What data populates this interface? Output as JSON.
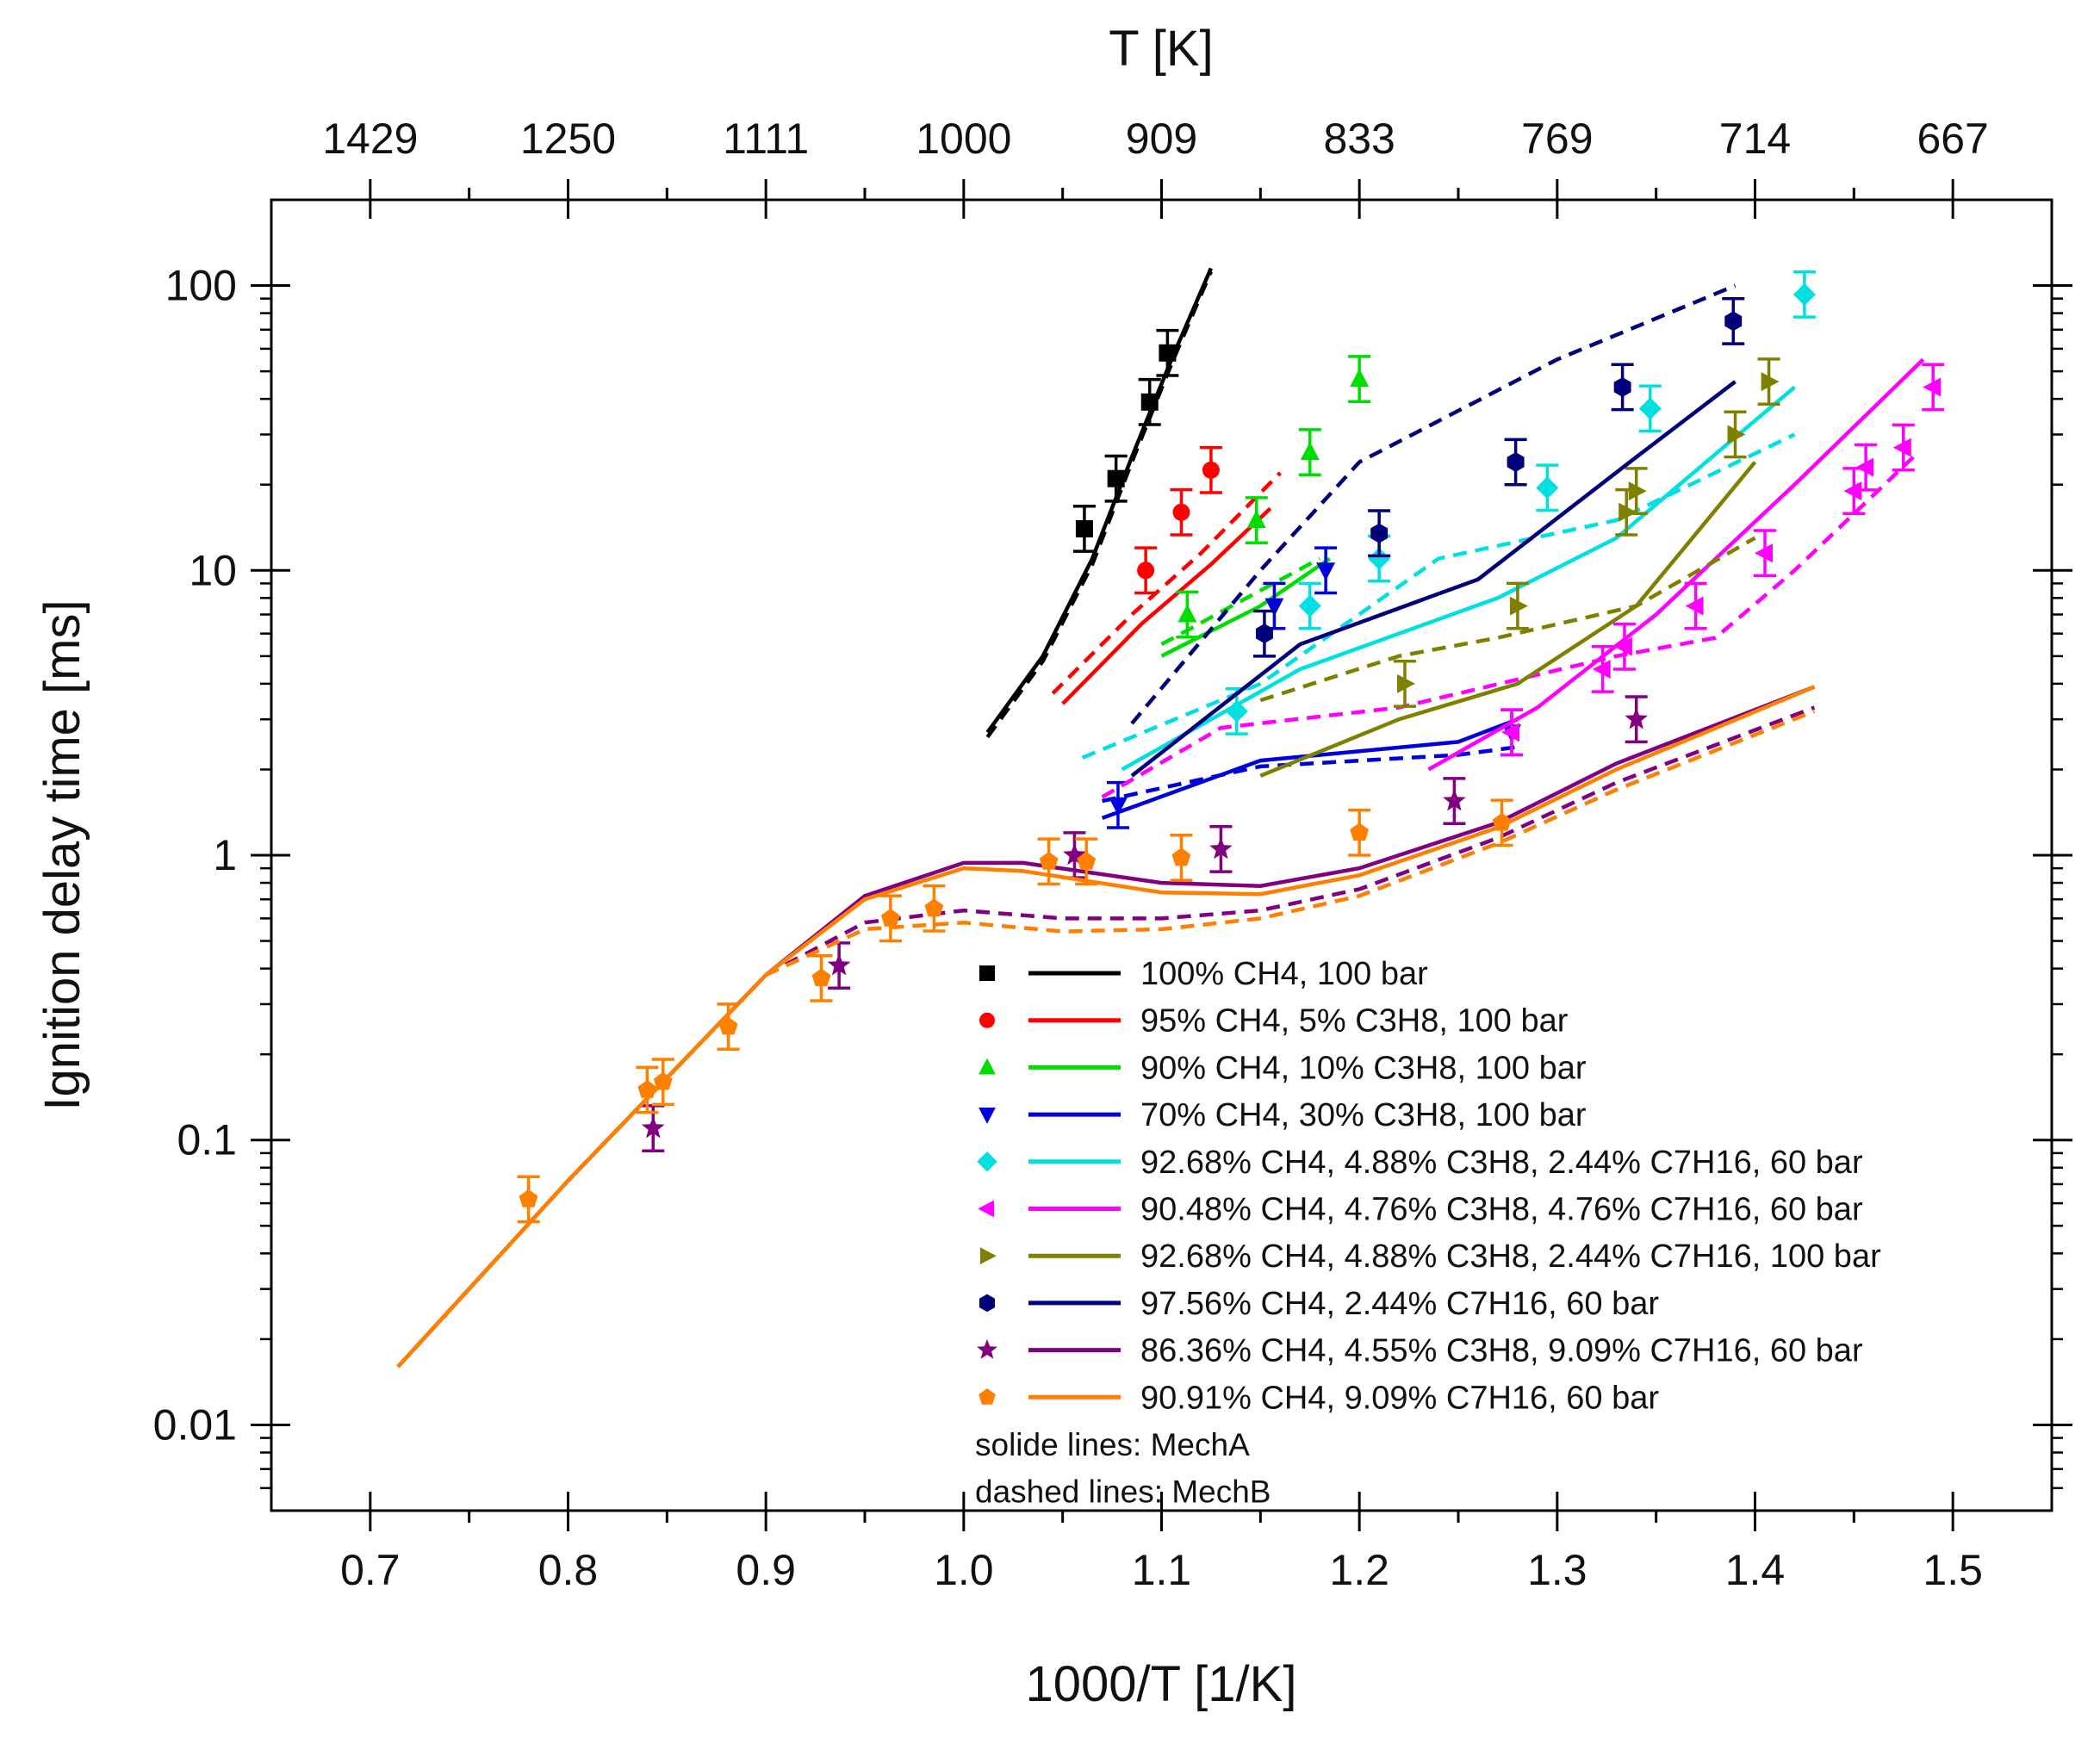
{
  "chart_data": {
    "type": "scatter",
    "ylabel": "Ignition delay time [ms]",
    "xlabel": "1000/T [1/K]",
    "top_axis_label": "T [K]",
    "xlim": [
      0.65,
      1.55
    ],
    "ylim": [
      0.005,
      200
    ],
    "yscale": "log",
    "x_ticks": [
      0.7,
      0.8,
      0.9,
      1.0,
      1.1,
      1.2,
      1.3,
      1.4,
      1.5
    ],
    "x_tick_labels": [
      "0.7",
      "0.8",
      "0.9",
      "1.0",
      "1.1",
      "1.2",
      "1.3",
      "1.4",
      "1.5"
    ],
    "y_ticks": [
      0.01,
      0.1,
      1,
      10,
      100
    ],
    "y_tick_labels": [
      "0.01",
      "0.1",
      "1",
      "10",
      "100"
    ],
    "top_ticks": [
      0.7,
      0.8,
      0.9,
      1.0,
      1.1,
      1.2,
      1.3,
      1.4,
      1.5
    ],
    "top_tick_labels": [
      "1429",
      "1250",
      "1111",
      "1000",
      "909",
      "833",
      "769",
      "714",
      "667"
    ],
    "legend_notes": [
      "solide lines: MechA",
      "dashed lines: MechB"
    ],
    "series": [
      {
        "name": "100% CH4, 100 bar",
        "color": "#000000",
        "marker": "square",
        "points": [
          [
            1.061,
            14
          ],
          [
            1.077,
            21
          ],
          [
            1.094,
            39
          ],
          [
            1.103,
            58
          ]
        ],
        "mechA": [
          [
            1.012,
            2.7
          ],
          [
            1.04,
            5.0
          ],
          [
            1.065,
            11
          ],
          [
            1.085,
            25
          ],
          [
            1.105,
            55
          ],
          [
            1.125,
            115
          ]
        ],
        "mechB": [
          [
            1.012,
            2.6
          ],
          [
            1.04,
            4.8
          ],
          [
            1.065,
            10.5
          ],
          [
            1.085,
            24
          ],
          [
            1.105,
            53
          ],
          [
            1.125,
            112
          ]
        ]
      },
      {
        "name": "95% CH4, 5% C3H8, 100 bar",
        "color": "#ff0000",
        "marker": "circle",
        "points": [
          [
            1.092,
            10.0
          ],
          [
            1.11,
            16
          ],
          [
            1.125,
            22.5
          ]
        ],
        "mechA": [
          [
            1.05,
            3.4
          ],
          [
            1.09,
            6.5
          ],
          [
            1.125,
            10.5
          ],
          [
            1.155,
            16.5
          ]
        ],
        "mechB": [
          [
            1.045,
            3.7
          ],
          [
            1.085,
            7.0
          ],
          [
            1.12,
            11.5
          ],
          [
            1.16,
            22
          ]
        ]
      },
      {
        "name": "90% CH4, 10% C3H8, 100 bar",
        "color": "#00dd00",
        "marker": "triangle-up",
        "points": [
          [
            1.113,
            7.0
          ],
          [
            1.148,
            15.0
          ],
          [
            1.175,
            26
          ],
          [
            1.2,
            47
          ]
        ],
        "mechA": [
          [
            1.1,
            5.0
          ],
          [
            1.15,
            7.5
          ],
          [
            1.185,
            11
          ]
        ],
        "mechB": [
          [
            1.1,
            5.5
          ],
          [
            1.15,
            8.5
          ],
          [
            1.18,
            11
          ]
        ]
      },
      {
        "name": "70% CH4, 30% C3H8, 100 bar",
        "color": "#0000dd",
        "marker": "triangle-down",
        "points": [
          [
            1.078,
            1.5
          ],
          [
            1.157,
            7.5
          ],
          [
            1.183,
            10
          ],
          [
            1.277,
            2.7
          ]
        ],
        "mechA": [
          [
            1.07,
            1.35
          ],
          [
            1.15,
            2.15
          ],
          [
            1.25,
            2.5
          ],
          [
            1.28,
            3.0
          ]
        ],
        "mechB": [
          [
            1.07,
            1.55
          ],
          [
            1.15,
            2.05
          ],
          [
            1.25,
            2.25
          ],
          [
            1.28,
            2.4
          ]
        ]
      },
      {
        "name": "92.68% CH4, 4.88% C3H8, 2.44% C7H16, 60 bar",
        "color": "#00e0e0",
        "marker": "diamond",
        "points": [
          [
            1.138,
            3.2
          ],
          [
            1.175,
            7.5
          ],
          [
            1.21,
            11
          ],
          [
            1.295,
            19.5
          ],
          [
            1.347,
            37
          ],
          [
            1.425,
            93
          ]
        ],
        "mechA": [
          [
            1.08,
            2.0
          ],
          [
            1.17,
            4.5
          ],
          [
            1.27,
            8.0
          ],
          [
            1.33,
            13
          ],
          [
            1.42,
            44
          ]
        ],
        "mechB": [
          [
            1.06,
            2.2
          ],
          [
            1.15,
            4.0
          ],
          [
            1.24,
            11
          ],
          [
            1.33,
            15
          ],
          [
            1.42,
            30
          ]
        ]
      },
      {
        "name": "90.48% CH4, 4.76% C3H8, 4.76% C7H16, 60 bar",
        "color": "#ff00ff",
        "marker": "triangle-left",
        "points": [
          [
            1.277,
            2.7
          ],
          [
            1.323,
            4.5
          ],
          [
            1.334,
            5.4
          ],
          [
            1.37,
            7.5
          ],
          [
            1.405,
            11.5
          ],
          [
            1.45,
            19
          ],
          [
            1.456,
            23
          ],
          [
            1.475,
            27
          ],
          [
            1.49,
            44
          ]
        ],
        "mechA": [
          [
            1.235,
            2.0
          ],
          [
            1.29,
            3.3
          ],
          [
            1.35,
            7.0
          ],
          [
            1.42,
            20
          ],
          [
            1.485,
            55
          ]
        ],
        "mechB": [
          [
            1.07,
            1.6
          ],
          [
            1.13,
            2.8
          ],
          [
            1.22,
            3.3
          ],
          [
            1.33,
            5.0
          ],
          [
            1.38,
            5.8
          ],
          [
            1.42,
            10
          ],
          [
            1.48,
            25
          ]
        ]
      },
      {
        "name": "92.68% CH4, 4.88% C3H8, 2.44% C7H16, 100 bar",
        "color": "#808000",
        "marker": "triangle-right",
        "points": [
          [
            1.223,
            4.0
          ],
          [
            1.28,
            7.5
          ],
          [
            1.335,
            16
          ],
          [
            1.34,
            19
          ],
          [
            1.39,
            30
          ],
          [
            1.407,
            46
          ]
        ],
        "mechA": [
          [
            1.15,
            1.9
          ],
          [
            1.22,
            3.0
          ],
          [
            1.28,
            4.0
          ],
          [
            1.34,
            7.5
          ],
          [
            1.4,
            24
          ]
        ],
        "mechB": [
          [
            1.15,
            3.5
          ],
          [
            1.22,
            5.0
          ],
          [
            1.27,
            5.8
          ],
          [
            1.34,
            7.5
          ],
          [
            1.4,
            13
          ]
        ]
      },
      {
        "name": "97.56% CH4, 2.44% C7H16, 60 bar",
        "color": "#00007a",
        "marker": "hexagon",
        "points": [
          [
            1.152,
            6.0
          ],
          [
            1.21,
            13.5
          ],
          [
            1.279,
            24
          ],
          [
            1.333,
            44
          ],
          [
            1.389,
            75
          ]
        ],
        "mechA": [
          [
            1.085,
            1.9
          ],
          [
            1.17,
            5.5
          ],
          [
            1.26,
            9.3
          ],
          [
            1.34,
            25
          ],
          [
            1.39,
            46
          ]
        ],
        "mechB": [
          [
            1.085,
            2.9
          ],
          [
            1.15,
            10
          ],
          [
            1.2,
            24
          ],
          [
            1.3,
            55
          ],
          [
            1.39,
            100
          ]
        ]
      },
      {
        "name": "86.36% CH4, 4.55% C3H8, 9.09% C7H16, 60 bar",
        "color": "#800080",
        "marker": "star",
        "points": [
          [
            0.843,
            0.11
          ],
          [
            0.937,
            0.41
          ],
          [
            1.056,
            1.0
          ],
          [
            1.13,
            1.05
          ],
          [
            1.248,
            1.55
          ],
          [
            1.34,
            3.0
          ]
        ],
        "mechA": [
          [
            0.714,
            0.016
          ],
          [
            0.8,
            0.072
          ],
          [
            0.9,
            0.38
          ],
          [
            0.95,
            0.72
          ],
          [
            1.0,
            0.94
          ],
          [
            1.03,
            0.94
          ],
          [
            1.1,
            0.8
          ],
          [
            1.15,
            0.78
          ],
          [
            1.2,
            0.9
          ],
          [
            1.27,
            1.3
          ],
          [
            1.33,
            2.1
          ],
          [
            1.43,
            3.9
          ]
        ],
        "mechB": [
          [
            0.714,
            0.016
          ],
          [
            0.8,
            0.072
          ],
          [
            0.9,
            0.38
          ],
          [
            0.95,
            0.58
          ],
          [
            1.0,
            0.64
          ],
          [
            1.05,
            0.6
          ],
          [
            1.1,
            0.6
          ],
          [
            1.15,
            0.64
          ],
          [
            1.2,
            0.76
          ],
          [
            1.27,
            1.15
          ],
          [
            1.33,
            1.8
          ],
          [
            1.43,
            3.3
          ]
        ]
      },
      {
        "name": "90.91% CH4, 9.09% C7H16, 60 bar",
        "color": "#ff8000",
        "marker": "pentagon",
        "points": [
          [
            0.78,
            0.062
          ],
          [
            0.84,
            0.15
          ],
          [
            0.848,
            0.16
          ],
          [
            0.881,
            0.25
          ],
          [
            0.928,
            0.37
          ],
          [
            0.963,
            0.6
          ],
          [
            0.985,
            0.65
          ],
          [
            1.043,
            0.95
          ],
          [
            1.062,
            0.95
          ],
          [
            1.11,
            0.98
          ],
          [
            1.2,
            1.2
          ],
          [
            1.272,
            1.3
          ]
        ],
        "mechA": [
          [
            0.714,
            0.016
          ],
          [
            0.8,
            0.072
          ],
          [
            0.9,
            0.38
          ],
          [
            0.95,
            0.7
          ],
          [
            1.0,
            0.9
          ],
          [
            1.03,
            0.88
          ],
          [
            1.1,
            0.74
          ],
          [
            1.15,
            0.73
          ],
          [
            1.2,
            0.85
          ],
          [
            1.27,
            1.25
          ],
          [
            1.33,
            2.0
          ],
          [
            1.43,
            3.9
          ]
        ],
        "mechB": [
          [
            0.714,
            0.016
          ],
          [
            0.8,
            0.072
          ],
          [
            0.9,
            0.38
          ],
          [
            0.95,
            0.55
          ],
          [
            1.0,
            0.58
          ],
          [
            1.05,
            0.54
          ],
          [
            1.1,
            0.55
          ],
          [
            1.15,
            0.6
          ],
          [
            1.2,
            0.72
          ],
          [
            1.27,
            1.1
          ],
          [
            1.33,
            1.7
          ],
          [
            1.43,
            3.2
          ]
        ]
      }
    ]
  }
}
